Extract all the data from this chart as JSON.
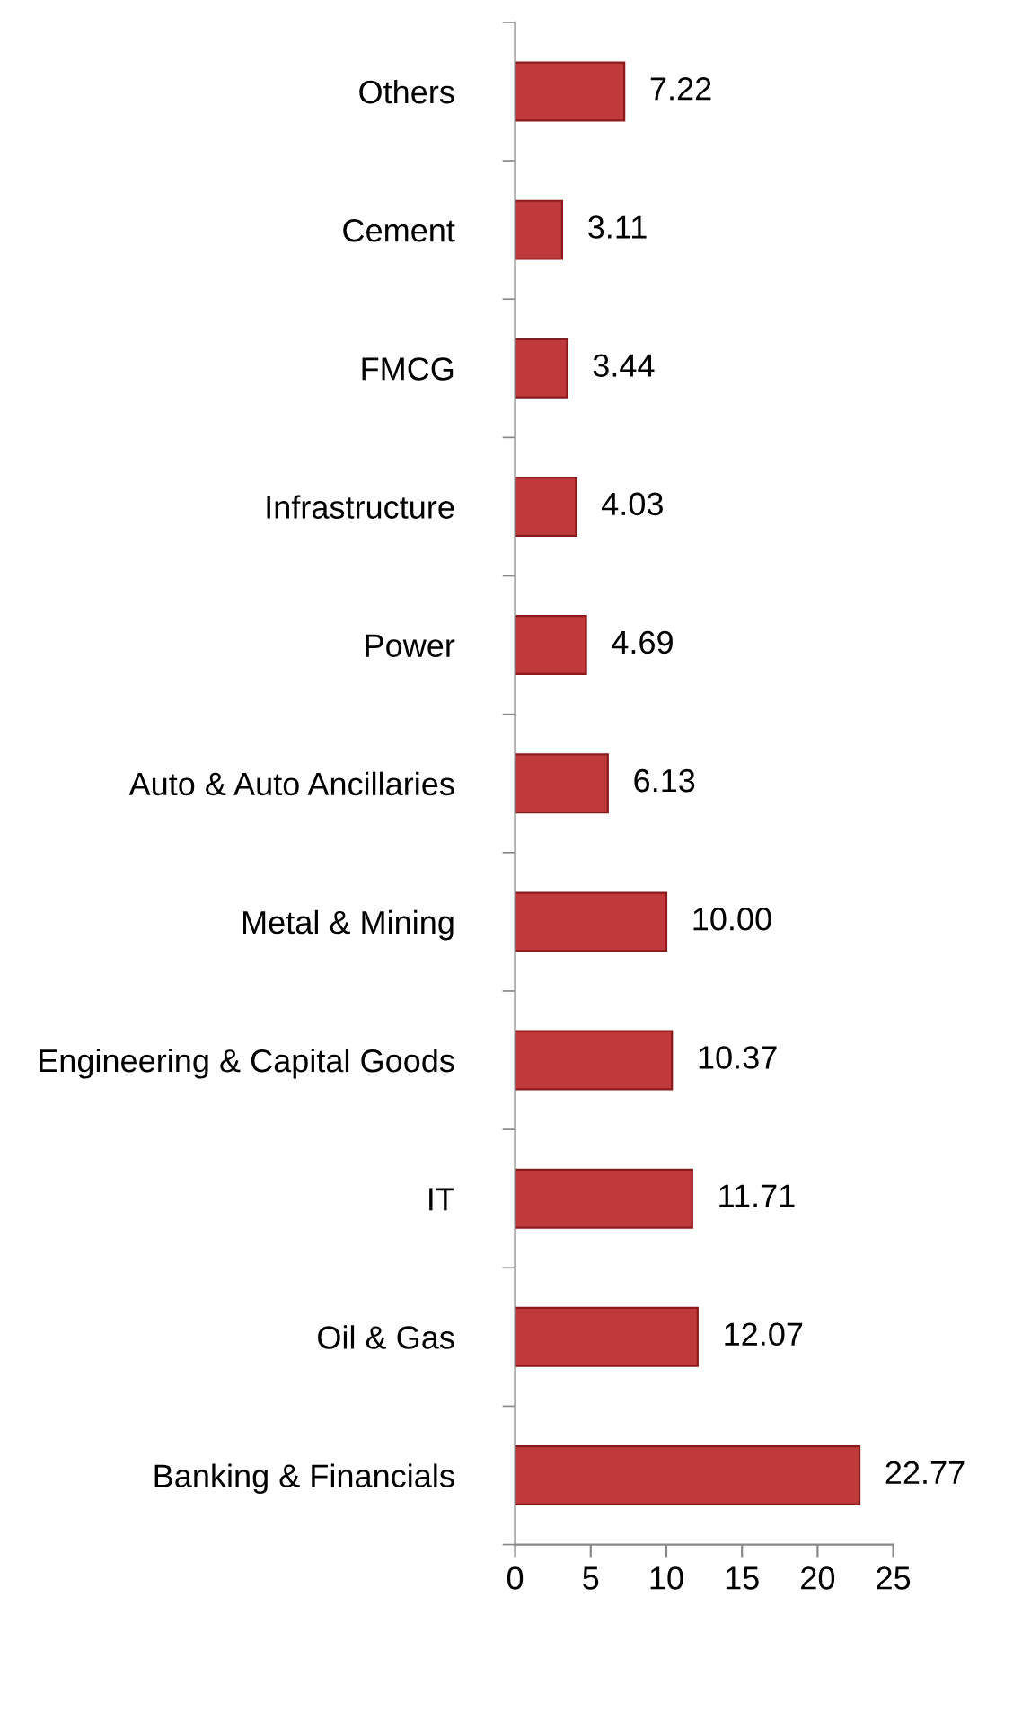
{
  "chart_data": {
    "type": "bar",
    "orientation": "horizontal",
    "categories": [
      "Others",
      "Cement",
      "FMCG",
      "Infrastructure",
      "Power",
      "Auto & Auto Ancillaries",
      "Metal & Mining",
      "Engineering & Capital Goods",
      "IT",
      "Oil & Gas",
      "Banking & Financials"
    ],
    "values": [
      7.22,
      3.11,
      3.44,
      4.03,
      4.69,
      6.13,
      10.0,
      10.37,
      11.71,
      12.07,
      22.77
    ],
    "value_labels": [
      "7.22",
      "3.11",
      "3.44",
      "4.03",
      "4.69",
      "6.13",
      "10.00",
      "10.37",
      "11.71",
      "12.07",
      "22.77"
    ],
    "color": "#c0393b",
    "xlim": [
      0,
      25
    ],
    "xticks": [
      0,
      5,
      10,
      15,
      20,
      25
    ],
    "grid": false,
    "legend": false
  }
}
